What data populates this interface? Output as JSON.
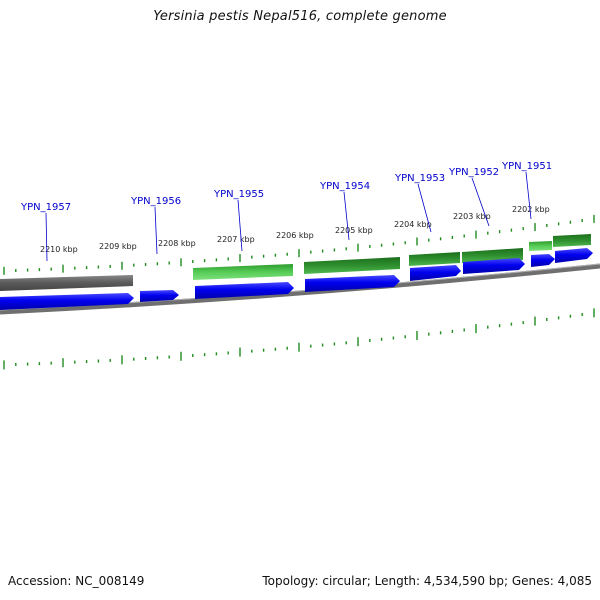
{
  "title": "Yersinia pestis Nepal516, complete genome",
  "footer": {
    "accession": "Accession: NC_008149",
    "summary": "Topology: circular; Length: 4,534,590 bp; Genes: 4,085"
  },
  "colors": {
    "forward_cds": "#0000ee",
    "gene_green": "#33aa33",
    "gene_dark_green": "#1f7a1f",
    "gene_gray": "#666666",
    "backbone": "#777777",
    "tick": "#1e8c1e",
    "label_blue": "#0000cc"
  },
  "scale_labels": [
    "2210 kbp",
    "2209 kbp",
    "2208 kbp",
    "2207 kbp",
    "2206 kbp",
    "2205 kbp",
    "2204 kbp",
    "2203 kbp",
    "2202 kbp"
  ],
  "gene_labels": [
    "YPN_1957",
    "YPN_1956",
    "YPN_1955",
    "YPN_1954",
    "YPN_1953",
    "YPN_1952",
    "YPN_1951"
  ]
}
